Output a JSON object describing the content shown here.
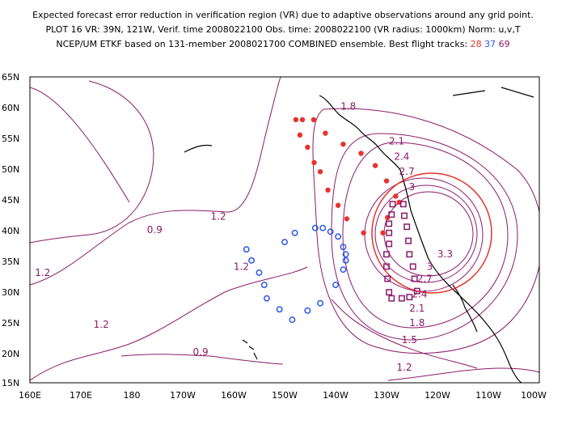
{
  "header": {
    "line1": "Expected forecast error reduction in verification region (VR) due to adaptive observations around any grid point.",
    "line2": "PLOT 16 VR: 39N, 121W, Verif. time 2008022100 Obs. time: 2008022100 (VR radius: 1000km) Norm: u,v,T",
    "line3_prefix": "NCEP/UM ETKF based on 131-member 2008021700 COMBINED ensemble.  Best flight tracks:",
    "track_red": "28",
    "track_blue": "37",
    "track_purple": "69"
  },
  "axes": {
    "lat_labels": [
      "65N",
      "60N",
      "55N",
      "50N",
      "45N",
      "40N",
      "35N",
      "30N",
      "25N",
      "20N",
      "15N"
    ],
    "lon_labels": [
      "160E",
      "170E",
      "180",
      "170W",
      "160W",
      "150W",
      "140W",
      "130W",
      "120W",
      "110W",
      "100W"
    ]
  },
  "contour_labels": [
    {
      "text": "1.8",
      "lon": -137.5,
      "lat": 60.2
    },
    {
      "text": "2.1",
      "lon": -128.0,
      "lat": 54.5
    },
    {
      "text": "2.4",
      "lon": -127.0,
      "lat": 52.0
    },
    {
      "text": "2.7",
      "lon": -126.0,
      "lat": 49.5
    },
    {
      "text": "3",
      "lon": -125.0,
      "lat": 47.0
    },
    {
      "text": "3.3",
      "lon": -118.5,
      "lat": 36.0
    },
    {
      "text": "3",
      "lon": -121.5,
      "lat": 34.0
    },
    {
      "text": "2.7",
      "lon": -122.5,
      "lat": 32.0
    },
    {
      "text": "2.4",
      "lon": -123.5,
      "lat": 29.5
    },
    {
      "text": "2.1",
      "lon": -124.0,
      "lat": 27.2
    },
    {
      "text": "1.8",
      "lon": -124.0,
      "lat": 24.8
    },
    {
      "text": "1.5",
      "lon": -125.5,
      "lat": 22.0
    },
    {
      "text": "1.2",
      "lon": -126.5,
      "lat": 17.5
    },
    {
      "text": "1.2",
      "lon": -163.0,
      "lat": 42.2
    },
    {
      "text": "0.9",
      "lon": -175.5,
      "lat": 40.0
    },
    {
      "text": "1.2",
      "lon": 162.5,
      "lat": 33.0
    },
    {
      "text": "1.2",
      "lon": -158.5,
      "lat": 34.0
    },
    {
      "text": "1.2",
      "lon": 174.0,
      "lat": 24.5
    },
    {
      "text": "0.9",
      "lon": -166.5,
      "lat": 20.0
    }
  ],
  "verification_region": {
    "center_lat": 39,
    "center_lon": -121,
    "radius_km": 1000,
    "color": "#e8332a"
  },
  "colors": {
    "contour": "#8b1a6b",
    "track_red": "#e8332a",
    "track_blue": "#2a57e8",
    "track_purple": "#8b1a6b",
    "coast": "#000000"
  },
  "flight_tracks": {
    "red": [
      [
        -146.5,
        58
      ],
      [
        -144.3,
        58
      ],
      [
        -142,
        55.8
      ],
      [
        -138.5,
        54
      ],
      [
        -135,
        52.5
      ],
      [
        -132.2,
        50.5
      ],
      [
        -130,
        48
      ],
      [
        -128.2,
        45.5
      ],
      [
        -127.5,
        44.5
      ],
      [
        -129.8,
        42
      ],
      [
        -130.7,
        39.5
      ],
      [
        -134.5,
        39.5
      ],
      [
        -137.8,
        41.8
      ],
      [
        -139.5,
        44
      ],
      [
        -141.5,
        46.5
      ],
      [
        -143,
        49.5
      ],
      [
        -144.2,
        51
      ],
      [
        -145.5,
        53.5
      ],
      [
        -147,
        55.5
      ],
      [
        -147.8,
        58
      ]
    ],
    "blue": [
      [
        -150,
        38
      ],
      [
        -148,
        39.5
      ],
      [
        -144,
        40.3
      ],
      [
        -142.5,
        40.3
      ],
      [
        -141,
        39.7
      ],
      [
        -139.5,
        38.9
      ],
      [
        -138.5,
        37.2
      ],
      [
        -138,
        36
      ],
      [
        -138,
        35
      ],
      [
        -138.5,
        33.5
      ],
      [
        -140,
        31
      ],
      [
        -143,
        28
      ],
      [
        -145.5,
        26.8
      ],
      [
        -148.5,
        25.3
      ],
      [
        -151,
        27
      ],
      [
        -153.5,
        28.8
      ],
      [
        -154,
        31
      ],
      [
        -155,
        33
      ],
      [
        -156.5,
        35
      ],
      [
        -157.5,
        36.8
      ]
    ],
    "purple": [
      [
        -128.8,
        44.2
      ],
      [
        -126.7,
        44.2
      ],
      [
        -126.5,
        42.3
      ],
      [
        -126,
        40.5
      ],
      [
        -125.7,
        38.2
      ],
      [
        -125.5,
        36
      ],
      [
        -124.8,
        34
      ],
      [
        -124.5,
        32
      ],
      [
        -124,
        30
      ],
      [
        -125.5,
        29
      ],
      [
        -127,
        28.8
      ],
      [
        -129,
        28.8
      ],
      [
        -129.5,
        29.8
      ],
      [
        -129.8,
        32
      ],
      [
        -130,
        34
      ],
      [
        -130,
        36
      ],
      [
        -129.5,
        37.7
      ],
      [
        -129.5,
        39.5
      ],
      [
        -129.5,
        41
      ],
      [
        -129,
        42.5
      ]
    ]
  }
}
